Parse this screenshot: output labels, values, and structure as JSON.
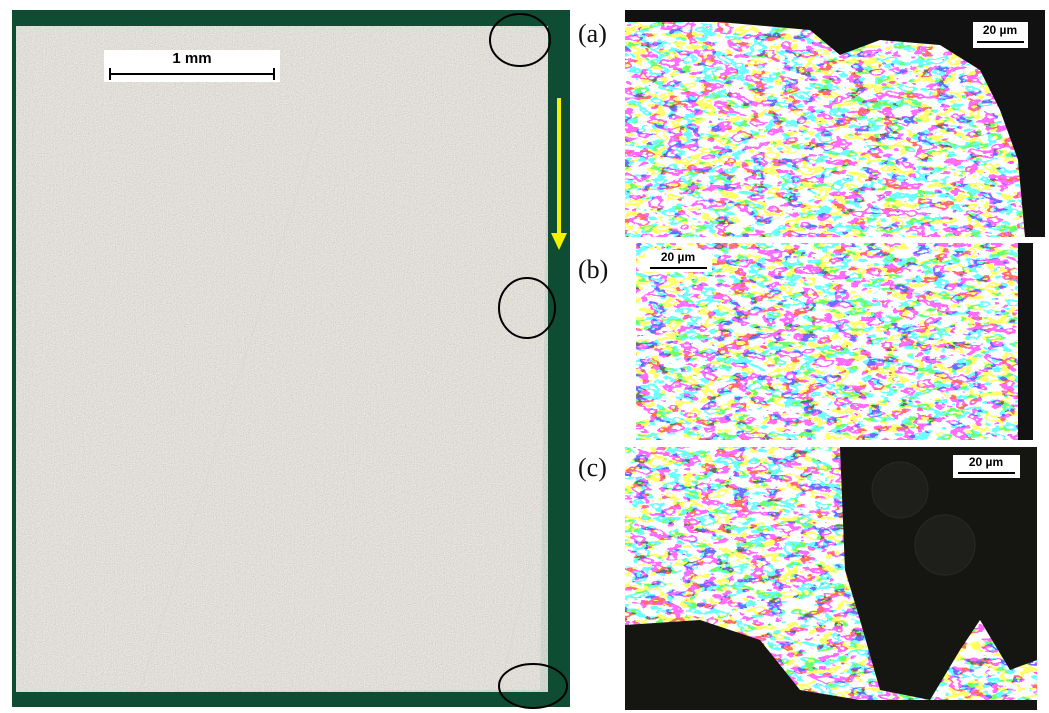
{
  "left_panel": {
    "scale_bar": "1 mm"
  },
  "right_panels": [
    {
      "label": "(a)",
      "scale_bar": "20 µm"
    },
    {
      "label": "(b)",
      "scale_bar": "20 µm"
    },
    {
      "label": "(c)",
      "scale_bar": "20 µm"
    }
  ]
}
